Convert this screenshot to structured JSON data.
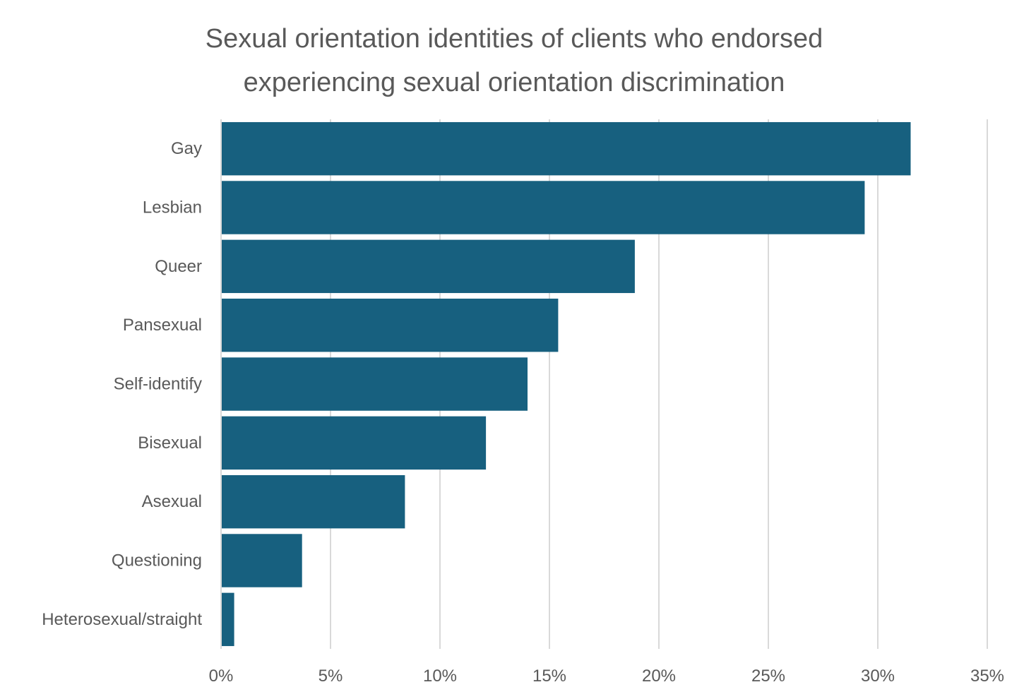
{
  "chart_data": {
    "type": "bar",
    "orientation": "horizontal",
    "title": "Sexual orientation identities of clients who endorsed experiencing sexual orientation discrimination",
    "title_lines": [
      "Sexual orientation identities of clients who endorsed",
      "experiencing sexual orientation discrimination"
    ],
    "categories": [
      "Gay",
      "Lesbian",
      "Queer",
      "Pansexual",
      "Self-identify",
      "Bisexual",
      "Asexual",
      "Questioning",
      "Heterosexual/straight"
    ],
    "values": [
      31.5,
      29.4,
      18.9,
      15.4,
      14.0,
      12.1,
      8.4,
      3.7,
      0.6
    ],
    "x_ticks": [
      "0%",
      "5%",
      "10%",
      "15%",
      "20%",
      "25%",
      "30%",
      "35%"
    ],
    "xlim": [
      0,
      35
    ],
    "xlabel": "",
    "ylabel": "",
    "grid": "vertical",
    "legend": "none",
    "bar_color": "#17607F",
    "grid_color": "#D9D9D9"
  }
}
